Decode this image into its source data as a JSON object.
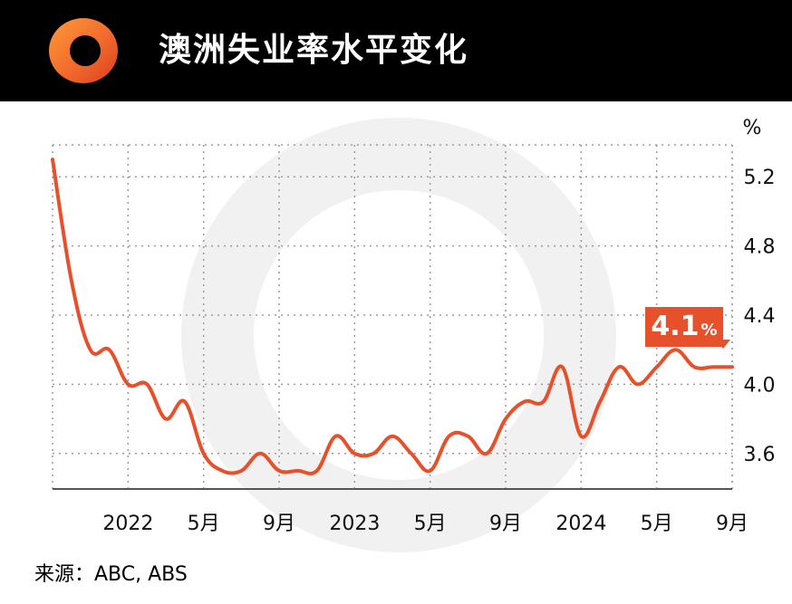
{
  "header": {
    "title": "澳洲失业率水平变化",
    "logo_icon": "orange-ring-logo-icon"
  },
  "source": "来源：ABC, ABS",
  "colors": {
    "line": "#e6502a",
    "badge": "#e6502a",
    "header_bg": "#000000",
    "grid": "#9a9a9a"
  },
  "latest": {
    "value": "4.1",
    "unit": "%"
  },
  "chart_data": {
    "type": "line",
    "title": "澳洲失业率水平变化",
    "xlabel": "",
    "ylabel": "%",
    "ylim": [
      3.4,
      5.4
    ],
    "yticks": [
      "5.2",
      "4.8",
      "4.4",
      "4.0",
      "3.6"
    ],
    "xtick_labels": [
      "2022",
      "5月",
      "9月",
      "2023",
      "5月",
      "9月",
      "2024",
      "5月",
      "9月"
    ],
    "grid": true,
    "x": [
      "2021-09",
      "2021-10",
      "2021-11",
      "2021-12",
      "2022-01",
      "2022-02",
      "2022-03",
      "2022-04",
      "2022-05",
      "2022-06",
      "2022-07",
      "2022-08",
      "2022-09",
      "2022-10",
      "2022-11",
      "2022-12",
      "2023-01",
      "2023-02",
      "2023-03",
      "2023-04",
      "2023-05",
      "2023-06",
      "2023-07",
      "2023-08",
      "2023-09",
      "2023-10",
      "2023-11",
      "2023-12",
      "2024-01",
      "2024-02",
      "2024-03",
      "2024-04",
      "2024-05",
      "2024-06",
      "2024-07",
      "2024-08",
      "2024-09"
    ],
    "series": [
      {
        "values": [
          5.3,
          4.6,
          4.2,
          4.2,
          4.0,
          4.0,
          3.8,
          3.9,
          3.6,
          3.5,
          3.5,
          3.6,
          3.5,
          3.5,
          3.5,
          3.7,
          3.6,
          3.6,
          3.7,
          3.6,
          3.5,
          3.7,
          3.7,
          3.6,
          3.8,
          3.9,
          3.9,
          4.1,
          3.7,
          3.9,
          4.1,
          4.0,
          4.1,
          4.2,
          4.1,
          4.1,
          4.1
        ]
      }
    ]
  }
}
